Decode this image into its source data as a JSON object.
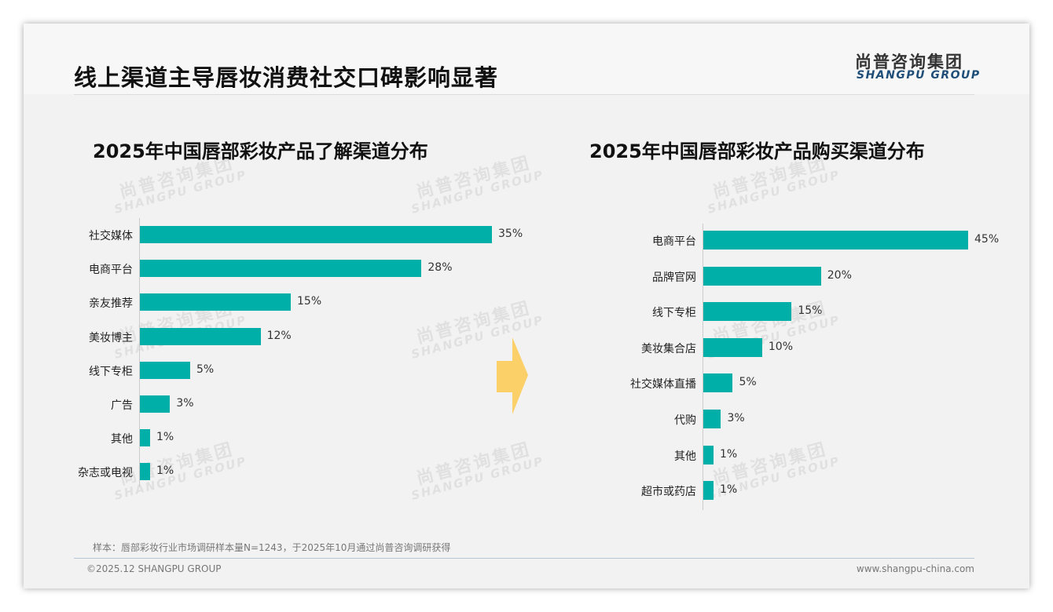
{
  "header": {
    "title": "线上渠道主导唇妆消费社交口碑影响显著",
    "logo_cn": "尚普咨询集团",
    "logo_en": "SHANGPU GROUP"
  },
  "watermark": {
    "cn": "尚普咨询集团",
    "en": "SHANGPU GROUP"
  },
  "chart_data": [
    {
      "type": "bar",
      "orientation": "horizontal",
      "title": "2025年中国唇部彩妆产品了解渠道分布",
      "categories": [
        "社交媒体",
        "电商平台",
        "亲友推荐",
        "美妆博主",
        "线下专柜",
        "广告",
        "其他",
        "杂志或电视"
      ],
      "values": [
        35,
        28,
        15,
        12,
        5,
        3,
        1,
        1
      ],
      "labels": [
        "35%",
        "28%",
        "15%",
        "12%",
        "5%",
        "3%",
        "1%",
        "1%"
      ],
      "unit": "%",
      "xlim": [
        0,
        35
      ],
      "color": "#00b0a8"
    },
    {
      "type": "bar",
      "orientation": "horizontal",
      "title": "2025年中国唇部彩妆产品购买渠道分布",
      "categories": [
        "电商平台",
        "品牌官网",
        "线下专柜",
        "美妆集合店",
        "社交媒体直播",
        "代购",
        "其他",
        "超市或药店"
      ],
      "values": [
        45,
        20,
        15,
        10,
        5,
        3,
        1,
        1
      ],
      "labels": [
        "45%",
        "20%",
        "15%",
        "10%",
        "5%",
        "3%",
        "1%",
        "1%"
      ],
      "unit": "%",
      "xlim": [
        0,
        45
      ],
      "color": "#00b0a8"
    }
  ],
  "footer": {
    "note": "样本：唇部彩妆行业市场调研样本量N=1243，于2025年10月通过尚普咨询调研获得",
    "copyright": "©2025.12 SHANGPU GROUP",
    "website": "www.shangpu-china.com"
  },
  "colors": {
    "bar": "#00b0a8",
    "arrow": "#fcd068",
    "logo_en": "#1f4e79"
  }
}
